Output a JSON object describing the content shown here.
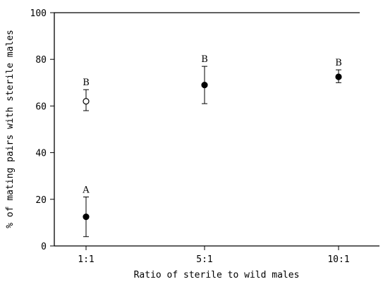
{
  "chart_data": {
    "type": "scatter",
    "title": "",
    "xlabel": "Ratio of sterile to wild males",
    "ylabel": "% of mating pairs with sterile males",
    "categories": [
      "1:1",
      "5:1",
      "10:1"
    ],
    "ylim": [
      0,
      100
    ],
    "yticks": [
      0,
      20,
      40,
      60,
      80,
      100
    ],
    "grid": false,
    "points": [
      {
        "category": "1:1",
        "y": 62,
        "err_low": 58,
        "err_high": 67,
        "marker": "open",
        "letter": "B"
      },
      {
        "category": "1:1",
        "y": 12.5,
        "err_low": 4,
        "err_high": 21,
        "marker": "filled",
        "letter": "A"
      },
      {
        "category": "5:1",
        "y": 69,
        "err_low": 61,
        "err_high": 77,
        "marker": "filled",
        "letter": "B"
      },
      {
        "category": "10:1",
        "y": 72.5,
        "err_low": 70,
        "err_high": 75.5,
        "marker": "filled",
        "letter": "B"
      }
    ]
  }
}
